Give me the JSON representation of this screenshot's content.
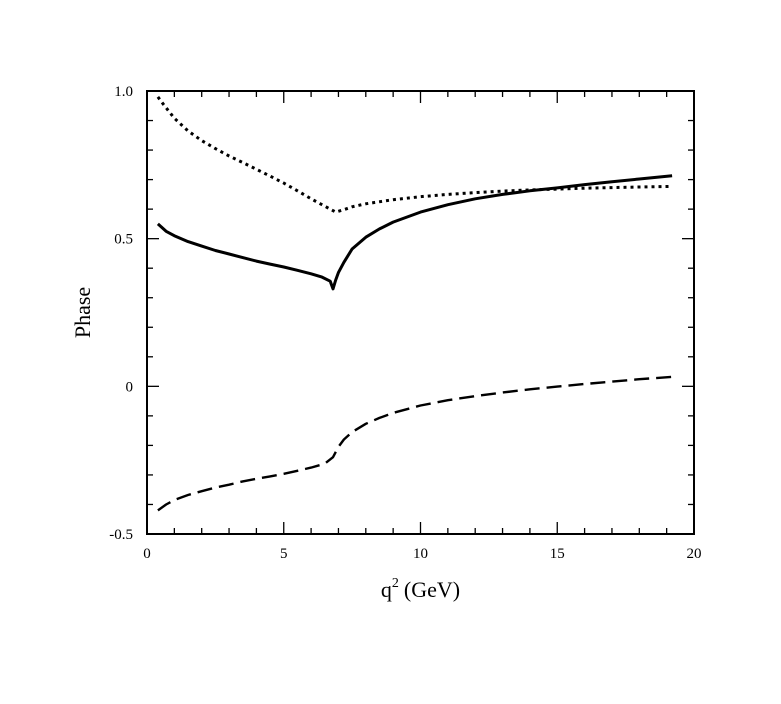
{
  "chart_data": {
    "type": "line",
    "xlabel": "q",
    "xlabel_sup": "2",
    "xlabel_unit": "(GeV)",
    "ylabel": "Phase",
    "xlim": [
      0,
      20
    ],
    "ylim": [
      -0.5,
      1.0
    ],
    "x_ticks": [
      0,
      5,
      10,
      15,
      20
    ],
    "x_tick_labels": [
      "0",
      "5",
      "10",
      "15",
      "20"
    ],
    "y_ticks": [
      -0.5,
      0,
      0.5,
      1.0
    ],
    "y_tick_labels": [
      "-0.5",
      "0",
      "0.5",
      "1.0"
    ],
    "grid": false,
    "series": [
      {
        "style": "solid",
        "x": [
          0.4,
          0.7,
          1.0,
          1.5,
          2.0,
          2.5,
          3.0,
          3.5,
          4.0,
          4.5,
          5.0,
          5.5,
          6.0,
          6.4,
          6.7,
          6.8,
          6.9,
          7.0,
          7.2,
          7.5,
          8.0,
          8.5,
          9.0,
          10.0,
          11.0,
          12.0,
          13.0,
          14.0,
          15.0,
          16.0,
          17.0,
          18.0,
          19.2
        ],
        "y": [
          0.55,
          0.525,
          0.51,
          0.49,
          0.475,
          0.46,
          0.448,
          0.436,
          0.424,
          0.414,
          0.404,
          0.393,
          0.381,
          0.37,
          0.356,
          0.33,
          0.36,
          0.385,
          0.42,
          0.465,
          0.505,
          0.533,
          0.556,
          0.59,
          0.615,
          0.635,
          0.65,
          0.662,
          0.672,
          0.683,
          0.693,
          0.702,
          0.713
        ]
      },
      {
        "style": "dotted",
        "x": [
          0.4,
          0.6,
          1.0,
          1.5,
          2.0,
          2.5,
          3.0,
          3.5,
          4.0,
          4.5,
          5.0,
          5.5,
          6.0,
          6.5,
          6.9,
          7.2,
          7.5,
          8.0,
          9.0,
          10.0,
          11.0,
          12.0,
          13.0,
          14.0,
          15.0,
          16.0,
          17.0,
          18.0,
          19.2
        ],
        "y": [
          0.98,
          0.955,
          0.908,
          0.865,
          0.832,
          0.805,
          0.78,
          0.758,
          0.735,
          0.712,
          0.688,
          0.662,
          0.635,
          0.61,
          0.59,
          0.598,
          0.608,
          0.618,
          0.632,
          0.642,
          0.65,
          0.656,
          0.661,
          0.665,
          0.668,
          0.671,
          0.673,
          0.675,
          0.677
        ]
      },
      {
        "style": "dashed",
        "x": [
          0.4,
          0.7,
          1.0,
          1.5,
          2.0,
          2.5,
          3.0,
          3.5,
          4.0,
          4.5,
          5.0,
          5.5,
          6.0,
          6.5,
          6.8,
          7.0,
          7.2,
          7.5,
          8.0,
          8.5,
          9.0,
          10.0,
          11.0,
          12.0,
          13.0,
          14.0,
          15.0,
          16.0,
          17.0,
          18.0,
          19.2
        ],
        "y": [
          -0.42,
          -0.4,
          -0.385,
          -0.368,
          -0.355,
          -0.343,
          -0.333,
          -0.322,
          -0.313,
          -0.305,
          -0.296,
          -0.286,
          -0.275,
          -0.262,
          -0.24,
          -0.205,
          -0.18,
          -0.155,
          -0.127,
          -0.107,
          -0.09,
          -0.065,
          -0.047,
          -0.033,
          -0.021,
          -0.01,
          -0.001,
          0.008,
          0.016,
          0.024,
          0.032
        ]
      }
    ]
  }
}
